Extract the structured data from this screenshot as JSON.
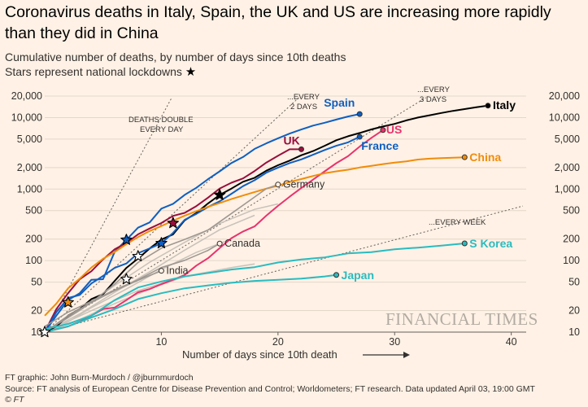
{
  "chart_data": {
    "type": "line",
    "title": "Coronavirus deaths in Italy, Spain, the UK and US are increasing more rapidly than they did in China",
    "subtitle": "Cumulative number of deaths, by number of days since 10th deaths",
    "note": "Stars represent national lockdowns",
    "xlabel": "Number of days since 10th death",
    "xlim": [
      0,
      41
    ],
    "ylim": [
      10,
      20000
    ],
    "yscale": "log",
    "xticks": [
      10,
      20,
      30,
      40
    ],
    "yticks": [
      10,
      20,
      50,
      100,
      200,
      500,
      1000,
      2000,
      5000,
      10000,
      20000
    ],
    "yticklabels": [
      "10",
      "20",
      "50",
      "100",
      "200",
      "500",
      "1,000",
      "2,000",
      "5,000",
      "10,000",
      "20,000"
    ],
    "grid": true,
    "reference_lines": [
      {
        "label": "DEATHS DOUBLE EVERY DAY",
        "doubling_days": 1
      },
      {
        "label": "...EVERY 2 DAYS",
        "doubling_days": 2
      },
      {
        "label": "...EVERY 3 DAYS",
        "doubling_days": 3
      },
      {
        "label": "...EVERY WEEK",
        "doubling_days": 7
      }
    ],
    "series": [
      {
        "name": "Italy",
        "color": "#000000",
        "points": [
          [
            0,
            10
          ],
          [
            1,
            12
          ],
          [
            2,
            17
          ],
          [
            3,
            21
          ],
          [
            4,
            29
          ],
          [
            5,
            34
          ],
          [
            6,
            52
          ],
          [
            7,
            79
          ],
          [
            8,
            107
          ],
          [
            9,
            148
          ],
          [
            10,
            197
          ],
          [
            11,
            233
          ],
          [
            12,
            366
          ],
          [
            13,
            463
          ],
          [
            14,
            631
          ],
          [
            15,
            827
          ],
          [
            16,
            1016
          ],
          [
            17,
            1266
          ],
          [
            18,
            1441
          ],
          [
            19,
            1809
          ],
          [
            20,
            2158
          ],
          [
            21,
            2503
          ],
          [
            22,
            2978
          ],
          [
            23,
            3405
          ],
          [
            24,
            4032
          ],
          [
            25,
            4825
          ],
          [
            26,
            5476
          ],
          [
            27,
            6077
          ],
          [
            28,
            6820
          ],
          [
            29,
            7503
          ],
          [
            30,
            8165
          ],
          [
            31,
            9134
          ],
          [
            32,
            10023
          ],
          [
            33,
            10779
          ],
          [
            34,
            11591
          ],
          [
            35,
            12428
          ],
          [
            36,
            13155
          ],
          [
            37,
            13915
          ],
          [
            38,
            14681
          ]
        ],
        "end_label": "Italy"
      },
      {
        "name": "Spain",
        "color": "#0f5fc0",
        "points": [
          [
            0,
            10
          ],
          [
            1,
            17
          ],
          [
            2,
            28
          ],
          [
            3,
            35
          ],
          [
            4,
            54
          ],
          [
            5,
            55
          ],
          [
            6,
            133
          ],
          [
            7,
            195
          ],
          [
            8,
            289
          ],
          [
            9,
            342
          ],
          [
            10,
            533
          ],
          [
            11,
            623
          ],
          [
            12,
            830
          ],
          [
            13,
            1043
          ],
          [
            14,
            1375
          ],
          [
            15,
            1772
          ],
          [
            16,
            2311
          ],
          [
            17,
            2808
          ],
          [
            18,
            3647
          ],
          [
            19,
            4365
          ],
          [
            20,
            5138
          ],
          [
            21,
            5982
          ],
          [
            22,
            6803
          ],
          [
            23,
            7716
          ],
          [
            24,
            8464
          ],
          [
            25,
            9387
          ],
          [
            26,
            10348
          ],
          [
            27,
            11198
          ]
        ],
        "end_label": "Spain"
      },
      {
        "name": "UK",
        "color": "#990f3d",
        "points": [
          [
            0,
            10
          ],
          [
            1,
            21
          ],
          [
            2,
            35
          ],
          [
            3,
            55
          ],
          [
            4,
            71
          ],
          [
            5,
            104
          ],
          [
            6,
            144
          ],
          [
            7,
            177
          ],
          [
            8,
            233
          ],
          [
            9,
            281
          ],
          [
            10,
            335
          ],
          [
            11,
            422
          ],
          [
            12,
            465
          ],
          [
            13,
            578
          ],
          [
            14,
            759
          ],
          [
            15,
            1019
          ],
          [
            16,
            1228
          ],
          [
            17,
            1408
          ],
          [
            18,
            1789
          ],
          [
            19,
            2352
          ],
          [
            20,
            2921
          ],
          [
            21,
            3605
          ],
          [
            22,
            3605
          ]
        ],
        "end_label": "UK"
      },
      {
        "name": "US",
        "color": "#e8336e",
        "points": [
          [
            0,
            10
          ],
          [
            1,
            11
          ],
          [
            2,
            12
          ],
          [
            3,
            14
          ],
          [
            4,
            17
          ],
          [
            5,
            21
          ],
          [
            6,
            22
          ],
          [
            7,
            28
          ],
          [
            8,
            36
          ],
          [
            9,
            40
          ],
          [
            10,
            47
          ],
          [
            11,
            54
          ],
          [
            12,
            63
          ],
          [
            13,
            85
          ],
          [
            14,
            108
          ],
          [
            15,
            150
          ],
          [
            16,
            206
          ],
          [
            17,
            255
          ],
          [
            18,
            301
          ],
          [
            19,
            426
          ],
          [
            20,
            583
          ],
          [
            21,
            784
          ],
          [
            22,
            1037
          ],
          [
            23,
            1355
          ],
          [
            24,
            1772
          ],
          [
            25,
            2299
          ],
          [
            26,
            2883
          ],
          [
            27,
            3931
          ],
          [
            28,
            5203
          ],
          [
            29,
            6692
          ]
        ],
        "end_label": "US"
      },
      {
        "name": "France",
        "color": "#0f5fc0",
        "points": [
          [
            0,
            10
          ],
          [
            1,
            19
          ],
          [
            2,
            30
          ],
          [
            3,
            33
          ],
          [
            4,
            48
          ],
          [
            5,
            61
          ],
          [
            6,
            79
          ],
          [
            7,
            91
          ],
          [
            8,
            127
          ],
          [
            9,
            148
          ],
          [
            10,
            175
          ],
          [
            11,
            244
          ],
          [
            12,
            372
          ],
          [
            13,
            450
          ],
          [
            14,
            562
          ],
          [
            15,
            674
          ],
          [
            16,
            860
          ],
          [
            17,
            1100
          ],
          [
            18,
            1331
          ],
          [
            19,
            1696
          ],
          [
            20,
            1995
          ],
          [
            21,
            2314
          ],
          [
            22,
            2606
          ],
          [
            23,
            3024
          ],
          [
            24,
            3523
          ],
          [
            25,
            4032
          ],
          [
            26,
            4503
          ],
          [
            27,
            5387
          ]
        ],
        "end_label": "France"
      },
      {
        "name": "China",
        "color": "#f08c0a",
        "points": [
          [
            0,
            17
          ],
          [
            1,
            25
          ],
          [
            2,
            41
          ],
          [
            3,
            56
          ],
          [
            4,
            80
          ],
          [
            5,
            106
          ],
          [
            6,
            132
          ],
          [
            7,
            170
          ],
          [
            8,
            213
          ],
          [
            9,
            259
          ],
          [
            10,
            304
          ],
          [
            11,
            362
          ],
          [
            12,
            426
          ],
          [
            13,
            492
          ],
          [
            14,
            565
          ],
          [
            15,
            638
          ],
          [
            16,
            724
          ],
          [
            17,
            813
          ],
          [
            18,
            910
          ],
          [
            19,
            1016
          ],
          [
            20,
            1113
          ],
          [
            21,
            1259
          ],
          [
            22,
            1380
          ],
          [
            23,
            1523
          ],
          [
            24,
            1665
          ],
          [
            25,
            1770
          ],
          [
            26,
            1868
          ],
          [
            27,
            2004
          ],
          [
            28,
            2118
          ],
          [
            29,
            2236
          ],
          [
            30,
            2345
          ],
          [
            31,
            2442
          ],
          [
            32,
            2592
          ],
          [
            33,
            2663
          ],
          [
            34,
            2715
          ],
          [
            35,
            2744
          ],
          [
            36,
            2788
          ]
        ],
        "end_label": "China"
      },
      {
        "name": "Germany",
        "color": "#9e9892",
        "points": [
          [
            0,
            10
          ],
          [
            2,
            17
          ],
          [
            4,
            26
          ],
          [
            6,
            47
          ],
          [
            8,
            94
          ],
          [
            10,
            149
          ],
          [
            12,
            198
          ],
          [
            14,
            267
          ],
          [
            16,
            455
          ],
          [
            18,
            775
          ],
          [
            19,
            1017
          ],
          [
            20,
            1158
          ]
        ],
        "end_label": "Germany"
      },
      {
        "name": "Canada",
        "color": "#9e9892",
        "points": [
          [
            0,
            12
          ],
          [
            2,
            19
          ],
          [
            4,
            27
          ],
          [
            6,
            39
          ],
          [
            8,
            54
          ],
          [
            10,
            80
          ],
          [
            12,
            101
          ],
          [
            14,
            139
          ],
          [
            15,
            173
          ]
        ],
        "end_label": "Canada"
      },
      {
        "name": "India",
        "color": "#9e9892",
        "points": [
          [
            0,
            10
          ],
          [
            2,
            16
          ],
          [
            4,
            26
          ],
          [
            6,
            38
          ],
          [
            8,
            53
          ],
          [
            9,
            62
          ],
          [
            10,
            72
          ]
        ],
        "end_label": "India"
      },
      {
        "name": "S Korea",
        "color": "#2bbbbf",
        "points": [
          [
            0,
            11
          ],
          [
            2,
            13
          ],
          [
            4,
            17
          ],
          [
            6,
            28
          ],
          [
            8,
            42
          ],
          [
            10,
            51
          ],
          [
            12,
            60
          ],
          [
            14,
            67
          ],
          [
            16,
            75
          ],
          [
            18,
            81
          ],
          [
            20,
            94
          ],
          [
            22,
            104
          ],
          [
            24,
            111
          ],
          [
            26,
            126
          ],
          [
            28,
            131
          ],
          [
            30,
            144
          ],
          [
            32,
            152
          ],
          [
            34,
            162
          ],
          [
            36,
            174
          ]
        ],
        "end_label": "S Korea"
      },
      {
        "name": "Japan",
        "color": "#2bbbbf",
        "points": [
          [
            0,
            10
          ],
          [
            2,
            12
          ],
          [
            4,
            16
          ],
          [
            6,
            21
          ],
          [
            8,
            29
          ],
          [
            10,
            35
          ],
          [
            12,
            41
          ],
          [
            14,
            45
          ],
          [
            16,
            49
          ],
          [
            18,
            52
          ],
          [
            20,
            54
          ],
          [
            22,
            56
          ],
          [
            24,
            60
          ],
          [
            25,
            63
          ]
        ],
        "end_label": "Japan"
      }
    ],
    "lockdowns": [
      {
        "country": "Italy",
        "x": 15,
        "y": 827,
        "color": "#000000"
      },
      {
        "country": "Spain",
        "x": 7,
        "y": 195,
        "color": "#0f5fc0"
      },
      {
        "country": "UK",
        "x": 11,
        "y": 335,
        "color": "#990f3d"
      },
      {
        "country": "France",
        "x": 10,
        "y": 175,
        "color": "#0f5fc0"
      },
      {
        "country": "China",
        "x": 2,
        "y": 26,
        "color": "#f08c0a"
      },
      {
        "country": "Germany",
        "x": 8,
        "y": 115,
        "color": "#ffffff"
      },
      {
        "country": "India",
        "x": 7,
        "y": 55,
        "color": "#ffffff"
      },
      {
        "country": "S Korea",
        "x": 0,
        "y": 10,
        "color": "#ffffff"
      }
    ],
    "other_series_color": "#c8c2ba",
    "other_series": [
      [
        [
          0,
          10
        ],
        [
          3,
          20
        ],
        [
          6,
          45
        ],
        [
          9,
          95
        ],
        [
          12,
          180
        ],
        [
          15,
          330
        ],
        [
          18,
          520
        ],
        [
          20,
          620
        ]
      ],
      [
        [
          0,
          10
        ],
        [
          3,
          18
        ],
        [
          6,
          36
        ],
        [
          9,
          70
        ],
        [
          12,
          140
        ],
        [
          15,
          270
        ],
        [
          18,
          430
        ]
      ],
      [
        [
          1,
          11
        ],
        [
          4,
          22
        ],
        [
          7,
          40
        ],
        [
          10,
          75
        ],
        [
          13,
          130
        ],
        [
          16,
          200
        ]
      ],
      [
        [
          0,
          10
        ],
        [
          4,
          20
        ],
        [
          8,
          38
        ],
        [
          12,
          60
        ],
        [
          16,
          80
        ],
        [
          18,
          90
        ]
      ],
      [
        [
          0,
          10
        ],
        [
          3,
          15
        ],
        [
          6,
          25
        ],
        [
          9,
          40
        ],
        [
          12,
          60
        ]
      ]
    ]
  },
  "texts": {
    "title": "Coronavirus deaths in Italy, Spain, the UK and US are increasing more rapidly than they did in China",
    "subtitle": "Cumulative number of deaths, by number of days since 10th deaths",
    "note": "Stars represent national lockdowns",
    "note_star": "★",
    "watermark": "FINANCIAL TIMES",
    "footer_graphic": "FT graphic: John Burn-Murdoch / @jburnmurdoch",
    "footer_source": "Source: FT analysis of European Centre for Disease Prevention and Control; Worldometers; FT research. Data updated April 03, 19:00 GMT",
    "footer_copy": "© FT",
    "ref_double_1": "DEATHS DOUBLE",
    "ref_double_2": "EVERY DAY",
    "ref_2days_1": "...EVERY",
    "ref_2days_2": "2 DAYS",
    "ref_3days_1": "...EVERY",
    "ref_3days_2": "3 DAYS",
    "ref_week": "...EVERY WEEK"
  }
}
